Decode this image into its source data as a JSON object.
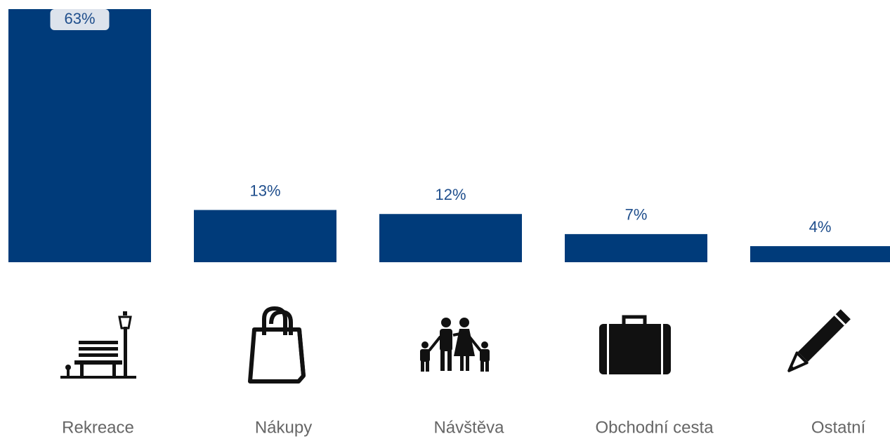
{
  "chart_data": {
    "type": "bar",
    "categories": [
      "Rekreace",
      "Nákupy",
      "Návštěva",
      "Obchodní cesta",
      "Ostatní"
    ],
    "values": [
      63,
      13,
      12,
      7,
      4
    ],
    "value_labels": [
      "63%",
      "13%",
      "12%",
      "7%",
      "4%"
    ],
    "color": "#003b7a"
  }
}
